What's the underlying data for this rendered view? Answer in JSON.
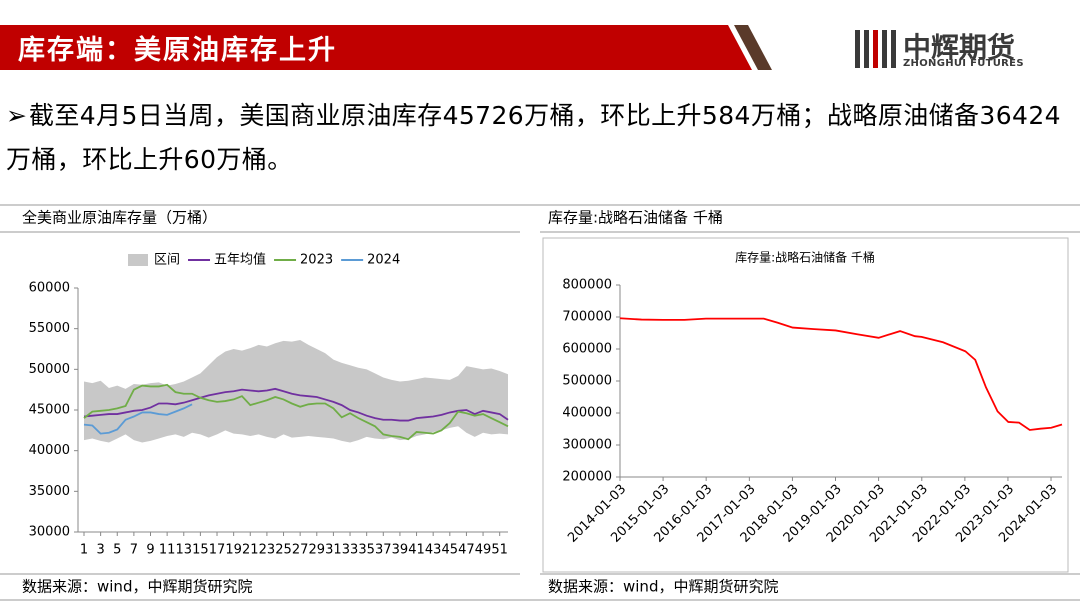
{
  "header": {
    "title": "库存端：美原油库存上升",
    "logo_cn": "中辉期货",
    "logo_en": "ZHONGHUI FUTURES"
  },
  "bullet": {
    "symbol": "➢",
    "text": "截至4月5日当周，美国商业原油库存45726万桶，环比上升584万桶；战略原油储备36424万桶，环比上升60万桶。"
  },
  "chart_data": [
    {
      "type": "line",
      "caption": "全美商业原油库存量（万桶）",
      "source": "数据来源：wind，中辉期货研究院",
      "x": [
        1,
        2,
        3,
        4,
        5,
        6,
        7,
        8,
        9,
        10,
        11,
        12,
        13,
        14,
        15,
        16,
        17,
        18,
        19,
        20,
        21,
        22,
        23,
        24,
        25,
        26,
        27,
        28,
        29,
        30,
        31,
        32,
        33,
        34,
        35,
        36,
        37,
        38,
        39,
        40,
        41,
        42,
        43,
        44,
        45,
        46,
        47,
        48,
        49,
        50,
        51,
        52
      ],
      "xlim": [
        1,
        52
      ],
      "xticks": [
        1,
        3,
        5,
        7,
        9,
        11,
        13,
        15,
        17,
        19,
        21,
        23,
        25,
        27,
        29,
        31,
        33,
        35,
        37,
        39,
        41,
        43,
        45,
        47,
        49,
        51
      ],
      "ylim": [
        30000,
        60000
      ],
      "yticks": [
        30000,
        35000,
        40000,
        45000,
        50000,
        55000,
        60000
      ],
      "series": [
        {
          "name": "区间",
          "color": "#c8c8c8",
          "high": [
            48500,
            48300,
            48600,
            47700,
            48000,
            47600,
            48200,
            48100,
            48300,
            48400,
            48000,
            48200,
            48500,
            49000,
            49500,
            50500,
            51500,
            52200,
            52500,
            52300,
            52600,
            53000,
            52800,
            53200,
            53500,
            53400,
            53600,
            53000,
            52500,
            52000,
            51200,
            50800,
            50500,
            50200,
            50000,
            49500,
            49000,
            48700,
            48500,
            48600,
            48800,
            49000,
            48900,
            48800,
            48700,
            49200,
            50400,
            50200,
            50000,
            50100,
            49800,
            49400
          ],
          "low": [
            41300,
            41500,
            41200,
            41000,
            41500,
            42000,
            41300,
            41000,
            41200,
            41500,
            41800,
            42000,
            41700,
            42200,
            42000,
            41600,
            42000,
            42500,
            42100,
            42000,
            41800,
            42000,
            41700,
            41500,
            42000,
            41600,
            41700,
            41800,
            41700,
            41600,
            41500,
            41200,
            41000,
            41300,
            41700,
            41500,
            41400,
            41600,
            41300,
            41400,
            41800,
            42000,
            42300,
            42500,
            42800,
            43000,
            42200,
            41700,
            42200,
            42000,
            42100,
            42000
          ]
        },
        {
          "name": "五年均值",
          "color": "#7030a0",
          "values": [
            44200,
            44300,
            44400,
            44500,
            44500,
            44700,
            44900,
            45000,
            45300,
            45800,
            45800,
            45700,
            45900,
            46200,
            46500,
            46800,
            47000,
            47200,
            47300,
            47500,
            47400,
            47300,
            47400,
            47600,
            47300,
            47000,
            46800,
            46700,
            46600,
            46300,
            46000,
            45600,
            45000,
            44700,
            44300,
            44000,
            43800,
            43800,
            43700,
            43700,
            44000,
            44100,
            44200,
            44400,
            44700,
            44900,
            45000,
            44500,
            44900,
            44700,
            44500,
            43800
          ]
        },
        {
          "name": "2023",
          "color": "#70ad47",
          "values": [
            44000,
            44800,
            44900,
            45000,
            45200,
            45500,
            47500,
            48000,
            47900,
            47900,
            48100,
            47200,
            47000,
            47000,
            46500,
            46200,
            46000,
            46100,
            46300,
            46700,
            45600,
            45900,
            46200,
            46600,
            46300,
            45800,
            45400,
            45700,
            45800,
            45800,
            45200,
            44100,
            44600,
            44000,
            43500,
            43000,
            42000,
            41800,
            41700,
            41400,
            42300,
            42200,
            42100,
            42500,
            43400,
            44800,
            44600,
            44300,
            44500,
            44000,
            43500,
            43000
          ]
        },
        {
          "name": "2024",
          "color": "#5b9bd5",
          "values": [
            43200,
            43100,
            42100,
            42200,
            42600,
            43800,
            44200,
            44700,
            44700,
            44500,
            44400,
            44800,
            45200,
            45700,
            null,
            null,
            null,
            null,
            null,
            null,
            null,
            null,
            null,
            null,
            null,
            null,
            null,
            null,
            null,
            null,
            null,
            null,
            null,
            null,
            null,
            null,
            null,
            null,
            null,
            null,
            null,
            null,
            null,
            null,
            null,
            null,
            null,
            null,
            null,
            null,
            null,
            null
          ]
        }
      ]
    },
    {
      "type": "line",
      "caption": "库存量:战略石油储备 千桶",
      "title": "库存量:战略石油储备 千桶",
      "source": "数据来源：wind，中辉期货研究院",
      "x": [
        "2014-01-03",
        "2014-07-04",
        "2015-01-02",
        "2015-07-03",
        "2016-01-01",
        "2016-07-01",
        "2017-01-06",
        "2017-05-05",
        "2017-09-01",
        "2018-01-05",
        "2018-07-06",
        "2019-01-04",
        "2019-07-05",
        "2020-01-03",
        "2020-07-03",
        "2020-11-06",
        "2021-01-01",
        "2021-07-02",
        "2022-01-07",
        "2022-04-01",
        "2022-07-01",
        "2022-10-07",
        "2023-01-06",
        "2023-04-07",
        "2023-07-07",
        "2023-10-06",
        "2024-01-05",
        "2024-04-05"
      ],
      "xlim": [
        "2014-01-03",
        "2024-04-05"
      ],
      "xticks": [
        "2014-01-03",
        "2015-01-03",
        "2016-01-03",
        "2017-01-03",
        "2018-01-03",
        "2019-01-03",
        "2020-01-03",
        "2021-01-03",
        "2022-01-03",
        "2023-01-03",
        "2024-01-03"
      ],
      "ylim": [
        200000,
        800000
      ],
      "yticks": [
        200000,
        300000,
        400000,
        500000,
        600000,
        700000,
        800000
      ],
      "series": [
        {
          "name": "库存量:战略石油储备",
          "color": "#ff0000",
          "values": [
            696000,
            692000,
            691000,
            691000,
            695000,
            695000,
            695000,
            695000,
            682000,
            667000,
            662000,
            658000,
            646000,
            635000,
            656000,
            640000,
            638000,
            621000,
            593000,
            566000,
            480000,
            405000,
            372000,
            370000,
            347000,
            351000,
            354000,
            364000
          ]
        }
      ]
    }
  ]
}
